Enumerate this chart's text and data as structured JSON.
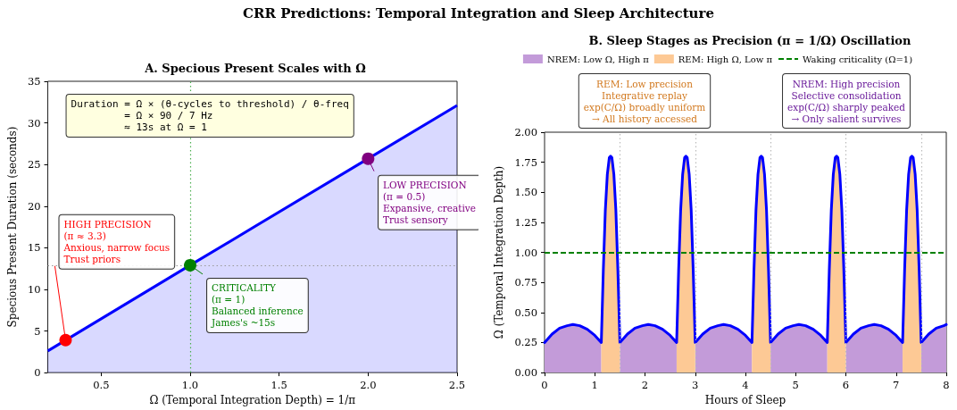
{
  "chart_data": [
    {
      "type": "other",
      "title": "CRR Predictions: Temporal Integration and Sleep Architecture"
    },
    {
      "type": "line",
      "title": "A. Specious Present Scales with Ω",
      "xlabel": "Ω (Temporal Integration Depth) = 1/π",
      "ylabel": "Specious Present Duration (seconds)",
      "xlim": [
        0.2,
        2.5
      ],
      "xticks": [
        0.5,
        {
          "value": 1,
          "label": "1.0"
        },
        1.5,
        {
          "value": 2,
          "label": "2.0"
        },
        2.5
      ],
      "ylim": [
        0,
        35
      ],
      "yticks": [
        0,
        5,
        10,
        15,
        20,
        25,
        30,
        35
      ],
      "series": [
        {
          "type": "area",
          "color": "#0000ff",
          "x": [
            0.2,
            1,
            2,
            2.5
          ],
          "values": [
            2.6,
            12.9,
            25.7,
            32.1
          ]
        },
        {
          "type": "scatter",
          "marker": "circle",
          "x": [
            0.3,
            1,
            2
          ],
          "values": [
            3.9,
            12.9,
            25.7
          ],
          "colors": [
            "#ff0000",
            "#008000",
            "#800080"
          ]
        }
      ],
      "ref_lines": [
        {
          "axis": "x",
          "value": 1,
          "color": "#4caf50",
          "line_style": "dotted"
        },
        {
          "axis": "y",
          "value": 12.9,
          "color": "#999999",
          "line_style": "dotted"
        }
      ],
      "annotations": [
        "Duration = Ω × (θ-cycles to threshold) / θ-freq\n         = Ω × 90 / 7 Hz\n         ≈ 13s at Ω = 1",
        {
          "text": "HIGH PRECISION\n(π ≈ 3.3)\nAnxious, narrow focus\nTrust priors",
          "x": 0.3,
          "y": 3.9
        },
        {
          "text": "CRITICALITY\n(π = 1)\nBalanced inference\nJames's ~15s",
          "x": 1,
          "y": 12.9
        },
        {
          "text": "LOW PRECISION\n(π = 0.5)\nExpansive, creative\nTrust sensory",
          "x": 2,
          "y": 25.7
        }
      ]
    },
    {
      "type": "line",
      "title": "B. Sleep Stages as Precision (π = 1/Ω) Oscillation",
      "xlabel": "Hours of Sleep",
      "ylabel": "Ω (Temporal Integration Depth)",
      "xlim": [
        0,
        8
      ],
      "xticks": [
        0,
        1,
        2,
        3,
        4,
        5,
        6,
        7,
        8
      ],
      "ylim": [
        0,
        2
      ],
      "yticks": [
        {
          "value": 0,
          "label": "0.00"
        },
        0.25,
        {
          "value": 0.5,
          "label": "0.50"
        },
        0.75,
        {
          "value": 1,
          "label": "1.00"
        },
        1.25,
        {
          "value": 1.5,
          "label": "1.50"
        },
        1.75,
        {
          "value": 2,
          "label": "2.00"
        }
      ],
      "legend": "top",
      "x": [
        0,
        0.15,
        0.3,
        0.45,
        0.565,
        0.7,
        0.85,
        1.0,
        1.13,
        1.17,
        1.21,
        1.25,
        1.29,
        1.315,
        1.34,
        1.38,
        1.42,
        1.46,
        1.5,
        1.65,
        1.8,
        1.95,
        2.065,
        2.2,
        2.35,
        2.5,
        2.63,
        2.67,
        2.71,
        2.75,
        2.79,
        2.815,
        2.84,
        2.88,
        2.92,
        2.96,
        3.0,
        3.15,
        3.3,
        3.45,
        3.565,
        3.7,
        3.85,
        4.0,
        4.13,
        4.17,
        4.21,
        4.25,
        4.29,
        4.315,
        4.34,
        4.38,
        4.42,
        4.46,
        4.5,
        4.65,
        4.8,
        4.95,
        5.065,
        5.2,
        5.35,
        5.5,
        5.63,
        5.67,
        5.71,
        5.75,
        5.79,
        5.815,
        5.84,
        5.88,
        5.92,
        5.96,
        6.0,
        6.15,
        6.3,
        6.45,
        6.565,
        6.7,
        6.85,
        7.0,
        7.13,
        7.17,
        7.21,
        7.25,
        7.29,
        7.315,
        7.34,
        7.38,
        7.42,
        7.46,
        7.5,
        7.65,
        7.8,
        7.95,
        8.0
      ],
      "series": [
        {
          "type": "area",
          "name": "NREM: Low Ω, High π",
          "color": "#c39bd9",
          "values": [
            0.25,
            0.32,
            0.37,
            0.39,
            0.4,
            0.39,
            0.36,
            0.31,
            0.25,
            null,
            null,
            null,
            null,
            null,
            null,
            null,
            null,
            null,
            0.25,
            0.32,
            0.37,
            0.39,
            0.4,
            0.39,
            0.36,
            0.31,
            0.25,
            null,
            null,
            null,
            null,
            null,
            null,
            null,
            null,
            null,
            0.25,
            0.32,
            0.37,
            0.39,
            0.4,
            0.39,
            0.36,
            0.31,
            0.25,
            null,
            null,
            null,
            null,
            null,
            null,
            null,
            null,
            null,
            0.25,
            0.32,
            0.37,
            0.39,
            0.4,
            0.39,
            0.36,
            0.31,
            0.25,
            null,
            null,
            null,
            null,
            null,
            null,
            null,
            null,
            null,
            0.25,
            0.32,
            0.37,
            0.39,
            0.4,
            0.39,
            0.36,
            0.31,
            0.25,
            null,
            null,
            null,
            null,
            null,
            null,
            null,
            null,
            null,
            0.25,
            0.32,
            0.37,
            0.39,
            0.4
          ]
        },
        {
          "type": "area",
          "name": "REM: High Ω, Low π",
          "color": "#fdc995",
          "values": [
            null,
            null,
            null,
            null,
            null,
            null,
            null,
            null,
            0.25,
            0.85,
            1.35,
            1.65,
            1.79,
            1.8,
            1.79,
            1.65,
            1.35,
            0.85,
            0.25,
            null,
            null,
            null,
            null,
            null,
            null,
            null,
            0.25,
            0.85,
            1.35,
            1.65,
            1.79,
            1.8,
            1.79,
            1.65,
            1.35,
            0.85,
            0.25,
            null,
            null,
            null,
            null,
            null,
            null,
            null,
            0.25,
            0.85,
            1.35,
            1.65,
            1.79,
            1.8,
            1.79,
            1.65,
            1.35,
            0.85,
            0.25,
            null,
            null,
            null,
            null,
            null,
            null,
            null,
            0.25,
            0.85,
            1.35,
            1.65,
            1.79,
            1.8,
            1.79,
            1.65,
            1.35,
            0.85,
            0.25,
            null,
            null,
            null,
            null,
            null,
            null,
            null,
            0.25,
            0.85,
            1.35,
            1.65,
            1.79,
            1.8,
            1.79,
            1.65,
            1.35,
            0.85,
            0.25,
            null,
            null,
            null,
            null
          ]
        },
        {
          "type": "line",
          "color": "#0000ff",
          "values": [
            0.25,
            0.32,
            0.37,
            0.39,
            0.4,
            0.39,
            0.36,
            0.31,
            0.25,
            0.85,
            1.35,
            1.65,
            1.79,
            1.8,
            1.79,
            1.65,
            1.35,
            0.85,
            0.25,
            0.32,
            0.37,
            0.39,
            0.4,
            0.39,
            0.36,
            0.31,
            0.25,
            0.85,
            1.35,
            1.65,
            1.79,
            1.8,
            1.79,
            1.65,
            1.35,
            0.85,
            0.25,
            0.32,
            0.37,
            0.39,
            0.4,
            0.39,
            0.36,
            0.31,
            0.25,
            0.85,
            1.35,
            1.65,
            1.79,
            1.8,
            1.79,
            1.65,
            1.35,
            0.85,
            0.25,
            0.32,
            0.37,
            0.39,
            0.4,
            0.39,
            0.36,
            0.31,
            0.25,
            0.85,
            1.35,
            1.65,
            1.79,
            1.8,
            1.79,
            1.65,
            1.35,
            0.85,
            0.25,
            0.32,
            0.37,
            0.39,
            0.4,
            0.39,
            0.36,
            0.31,
            0.25,
            0.85,
            1.35,
            1.65,
            1.79,
            1.8,
            1.79,
            1.65,
            1.35,
            0.85,
            0.25,
            0.32,
            0.37,
            0.39,
            0.4
          ]
        }
      ],
      "ref_lines": [
        {
          "axis": "y",
          "value": 1,
          "label": "Waking criticality (Ω=1)",
          "color": "#008000",
          "line_style": "dashed"
        },
        {
          "axis": "x",
          "value": 1.5,
          "color": "#bbbbbb",
          "line_style": "dotted"
        },
        {
          "axis": "x",
          "value": 3,
          "color": "#bbbbbb",
          "line_style": "dotted"
        },
        {
          "axis": "x",
          "value": 4.5,
          "color": "#bbbbbb",
          "line_style": "dotted"
        },
        {
          "axis": "x",
          "value": 6,
          "color": "#bbbbbb",
          "line_style": "dotted"
        },
        {
          "axis": "x",
          "value": 7.5,
          "color": "#bbbbbb",
          "line_style": "dotted"
        }
      ],
      "annotations": [
        "REM: Low precision\nIntegrative replay\nexp(C/Ω) broadly uniform\n→ All history accessed",
        "NREM: High precision\nSelective consolidation\nexp(C/Ω) sharply peaked\n→ Only salient survives"
      ]
    }
  ]
}
